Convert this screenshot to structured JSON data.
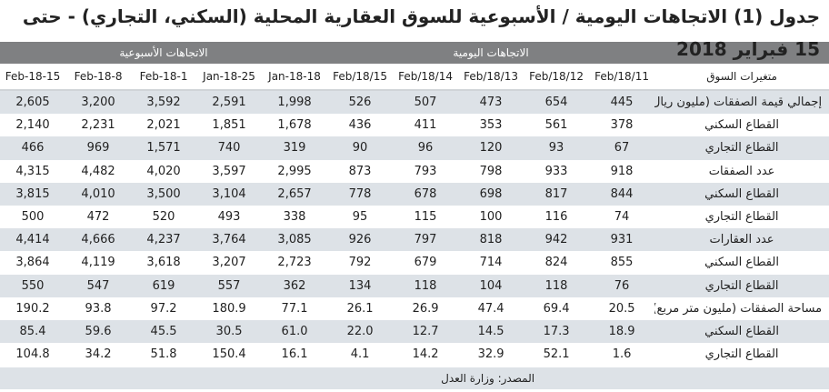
{
  "title": "جدول (1) الاتجاهات اليومية / الأسبوعية  للسوق العقارية المحلية (السكني، التجاري) - حتى 15 فبراير 2018",
  "group_headers": {
    "daily": "الاتجاهات اليومية",
    "weekly": "الاتجاهات الأسبوعية"
  },
  "columns_label": "متغيرات السوق",
  "columns": [
    "Feb/18/11",
    "Feb/18/12",
    "Feb/18/13",
    "Feb/18/14",
    "Feb/18/15",
    "18-Jan-18",
    "25-Jan-18",
    "1-Feb-18",
    "8-Feb-18",
    "15-Feb-18"
  ],
  "rows": [
    {
      "label": "إجمالي قيمة الصفقات (مليون ريال)",
      "values": [
        "445",
        "654",
        "473",
        "507",
        "526",
        "1,998",
        "2,591",
        "3,592",
        "3,200",
        "2,605"
      ]
    },
    {
      "label": "القطاع السكني",
      "values": [
        "378",
        "561",
        "353",
        "411",
        "436",
        "1,678",
        "1,851",
        "2,021",
        "2,231",
        "2,140"
      ]
    },
    {
      "label": "القطاع التجاري",
      "values": [
        "67",
        "93",
        "120",
        "96",
        "90",
        "319",
        "740",
        "1,571",
        "969",
        "466"
      ]
    },
    {
      "label": "عدد الصفقات",
      "values": [
        "918",
        "933",
        "798",
        "793",
        "873",
        "2,995",
        "3,597",
        "4,020",
        "4,482",
        "4,315"
      ]
    },
    {
      "label": "القطاع السكني",
      "values": [
        "844",
        "817",
        "698",
        "678",
        "778",
        "2,657",
        "3,104",
        "3,500",
        "4,010",
        "3,815"
      ]
    },
    {
      "label": "القطاع التجاري",
      "values": [
        "74",
        "116",
        "100",
        "115",
        "95",
        "338",
        "493",
        "520",
        "472",
        "500"
      ]
    },
    {
      "label": "عدد العقارات",
      "values": [
        "931",
        "942",
        "818",
        "797",
        "926",
        "3,085",
        "3,764",
        "4,237",
        "4,666",
        "4,414"
      ]
    },
    {
      "label": "القطاع السكني",
      "values": [
        "855",
        "824",
        "714",
        "679",
        "792",
        "2,723",
        "3,207",
        "3,618",
        "4,119",
        "3,864"
      ]
    },
    {
      "label": "القطاع التجاري",
      "values": [
        "76",
        "118",
        "104",
        "118",
        "134",
        "362",
        "557",
        "619",
        "547",
        "550"
      ]
    },
    {
      "label": "مساحة الصفقات (مليون متر مربع)",
      "values": [
        "20.5",
        "69.4",
        "47.4",
        "26.9",
        "26.1",
        "77.1",
        "180.9",
        "97.2",
        "93.8",
        "190.2"
      ]
    },
    {
      "label": "القطاع السكني",
      "values": [
        "18.9",
        "17.3",
        "14.5",
        "12.7",
        "22.0",
        "61.0",
        "30.5",
        "45.5",
        "59.6",
        "85.4"
      ]
    },
    {
      "label": "القطاع التجاري",
      "values": [
        "1.6",
        "52.1",
        "32.9",
        "14.2",
        "4.1",
        "16.1",
        "150.4",
        "51.8",
        "34.2",
        "104.8"
      ]
    }
  ],
  "source": "المصدر: وزارة العدل"
}
